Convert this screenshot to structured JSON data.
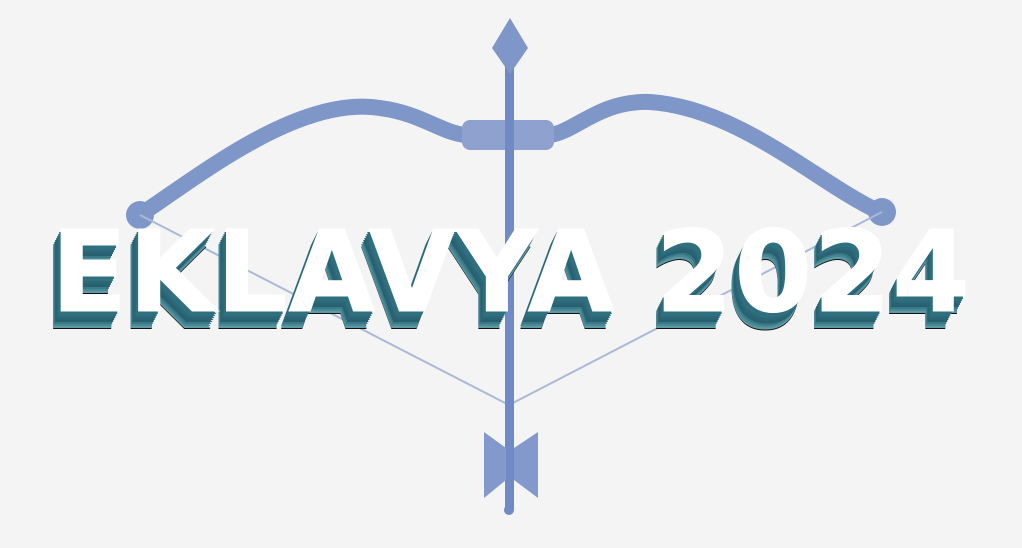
{
  "logo": {
    "title": "EKLAVYA 2024",
    "artwork": "bow-and-arrow",
    "colors": {
      "background": "#f4f4f5",
      "bow": "#7f96c8",
      "string": "#a9bad8",
      "title_text": "#ffffff",
      "title_extrude": "#2f6f7f"
    }
  }
}
